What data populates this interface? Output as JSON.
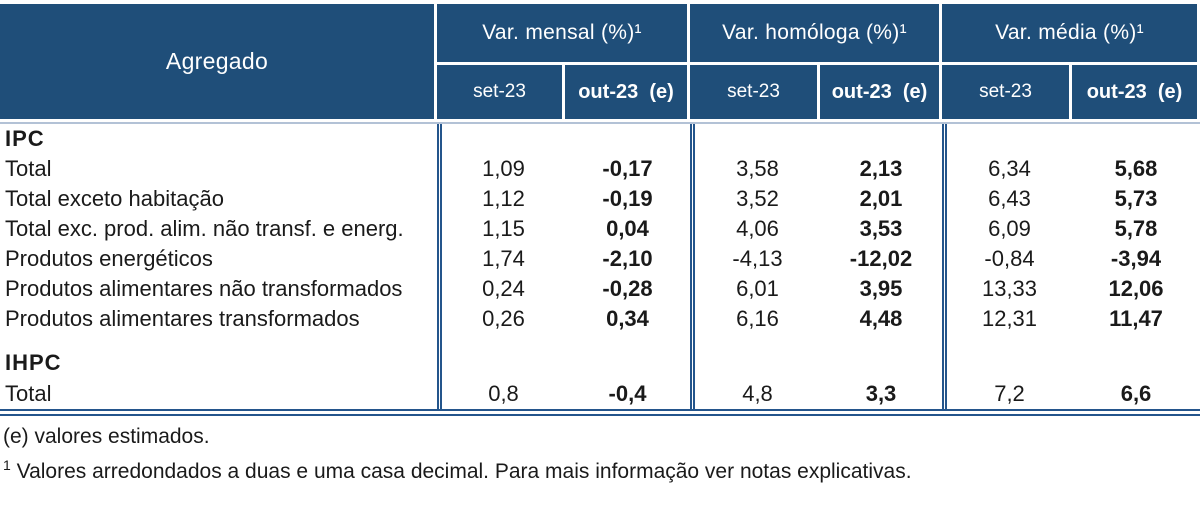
{
  "colors": {
    "header_bg": "#1F4E79",
    "border_blue": "#24558C",
    "text": "#1a1a1a"
  },
  "table": {
    "corner_label": "Agregado",
    "groups": [
      {
        "label": "Var. mensal (%)¹"
      },
      {
        "label": "Var. homóloga (%)¹"
      },
      {
        "label": "Var. média (%)¹"
      }
    ],
    "subheaders": [
      "set-23",
      "out-23  (e)",
      "set-23",
      "out-23  (e)",
      "set-23",
      "out-23  (e)"
    ],
    "rows": [
      {
        "type": "section",
        "label": "IPC"
      },
      {
        "type": "data",
        "label": "Total",
        "values": [
          "1,09",
          "-0,17",
          "3,58",
          "2,13",
          "6,34",
          "5,68"
        ]
      },
      {
        "type": "data",
        "label": "Total exceto habitação",
        "values": [
          "1,12",
          "-0,19",
          "3,52",
          "2,01",
          "6,43",
          "5,73"
        ]
      },
      {
        "type": "data",
        "label": "Total exc. prod. alim. não transf. e energ.",
        "values": [
          "1,15",
          "0,04",
          "4,06",
          "3,53",
          "6,09",
          "5,78"
        ]
      },
      {
        "type": "data",
        "label": "Produtos energéticos",
        "values": [
          "1,74",
          "-2,10",
          "-4,13",
          "-12,02",
          "-0,84",
          "-3,94"
        ]
      },
      {
        "type": "data",
        "label": "Produtos alimentares não transformados",
        "values": [
          "0,24",
          "-0,28",
          "6,01",
          "3,95",
          "13,33",
          "12,06"
        ]
      },
      {
        "type": "data",
        "label": "Produtos alimentares transformados",
        "values": [
          "0,26",
          "0,34",
          "6,16",
          "4,48",
          "12,31",
          "11,47"
        ]
      },
      {
        "type": "spacer",
        "label": ""
      },
      {
        "type": "section",
        "label": "IHPC"
      },
      {
        "type": "data",
        "label": "Total",
        "values": [
          "0,8",
          "-0,4",
          "4,8",
          "3,3",
          "7,2",
          "6,6"
        ]
      }
    ]
  },
  "footnotes": {
    "estimated": "(e) valores estimados.",
    "note1_marker": "1",
    "note1_text": " Valores arredondados a duas e uma casa decimal. Para mais informação ver notas explicativas."
  }
}
